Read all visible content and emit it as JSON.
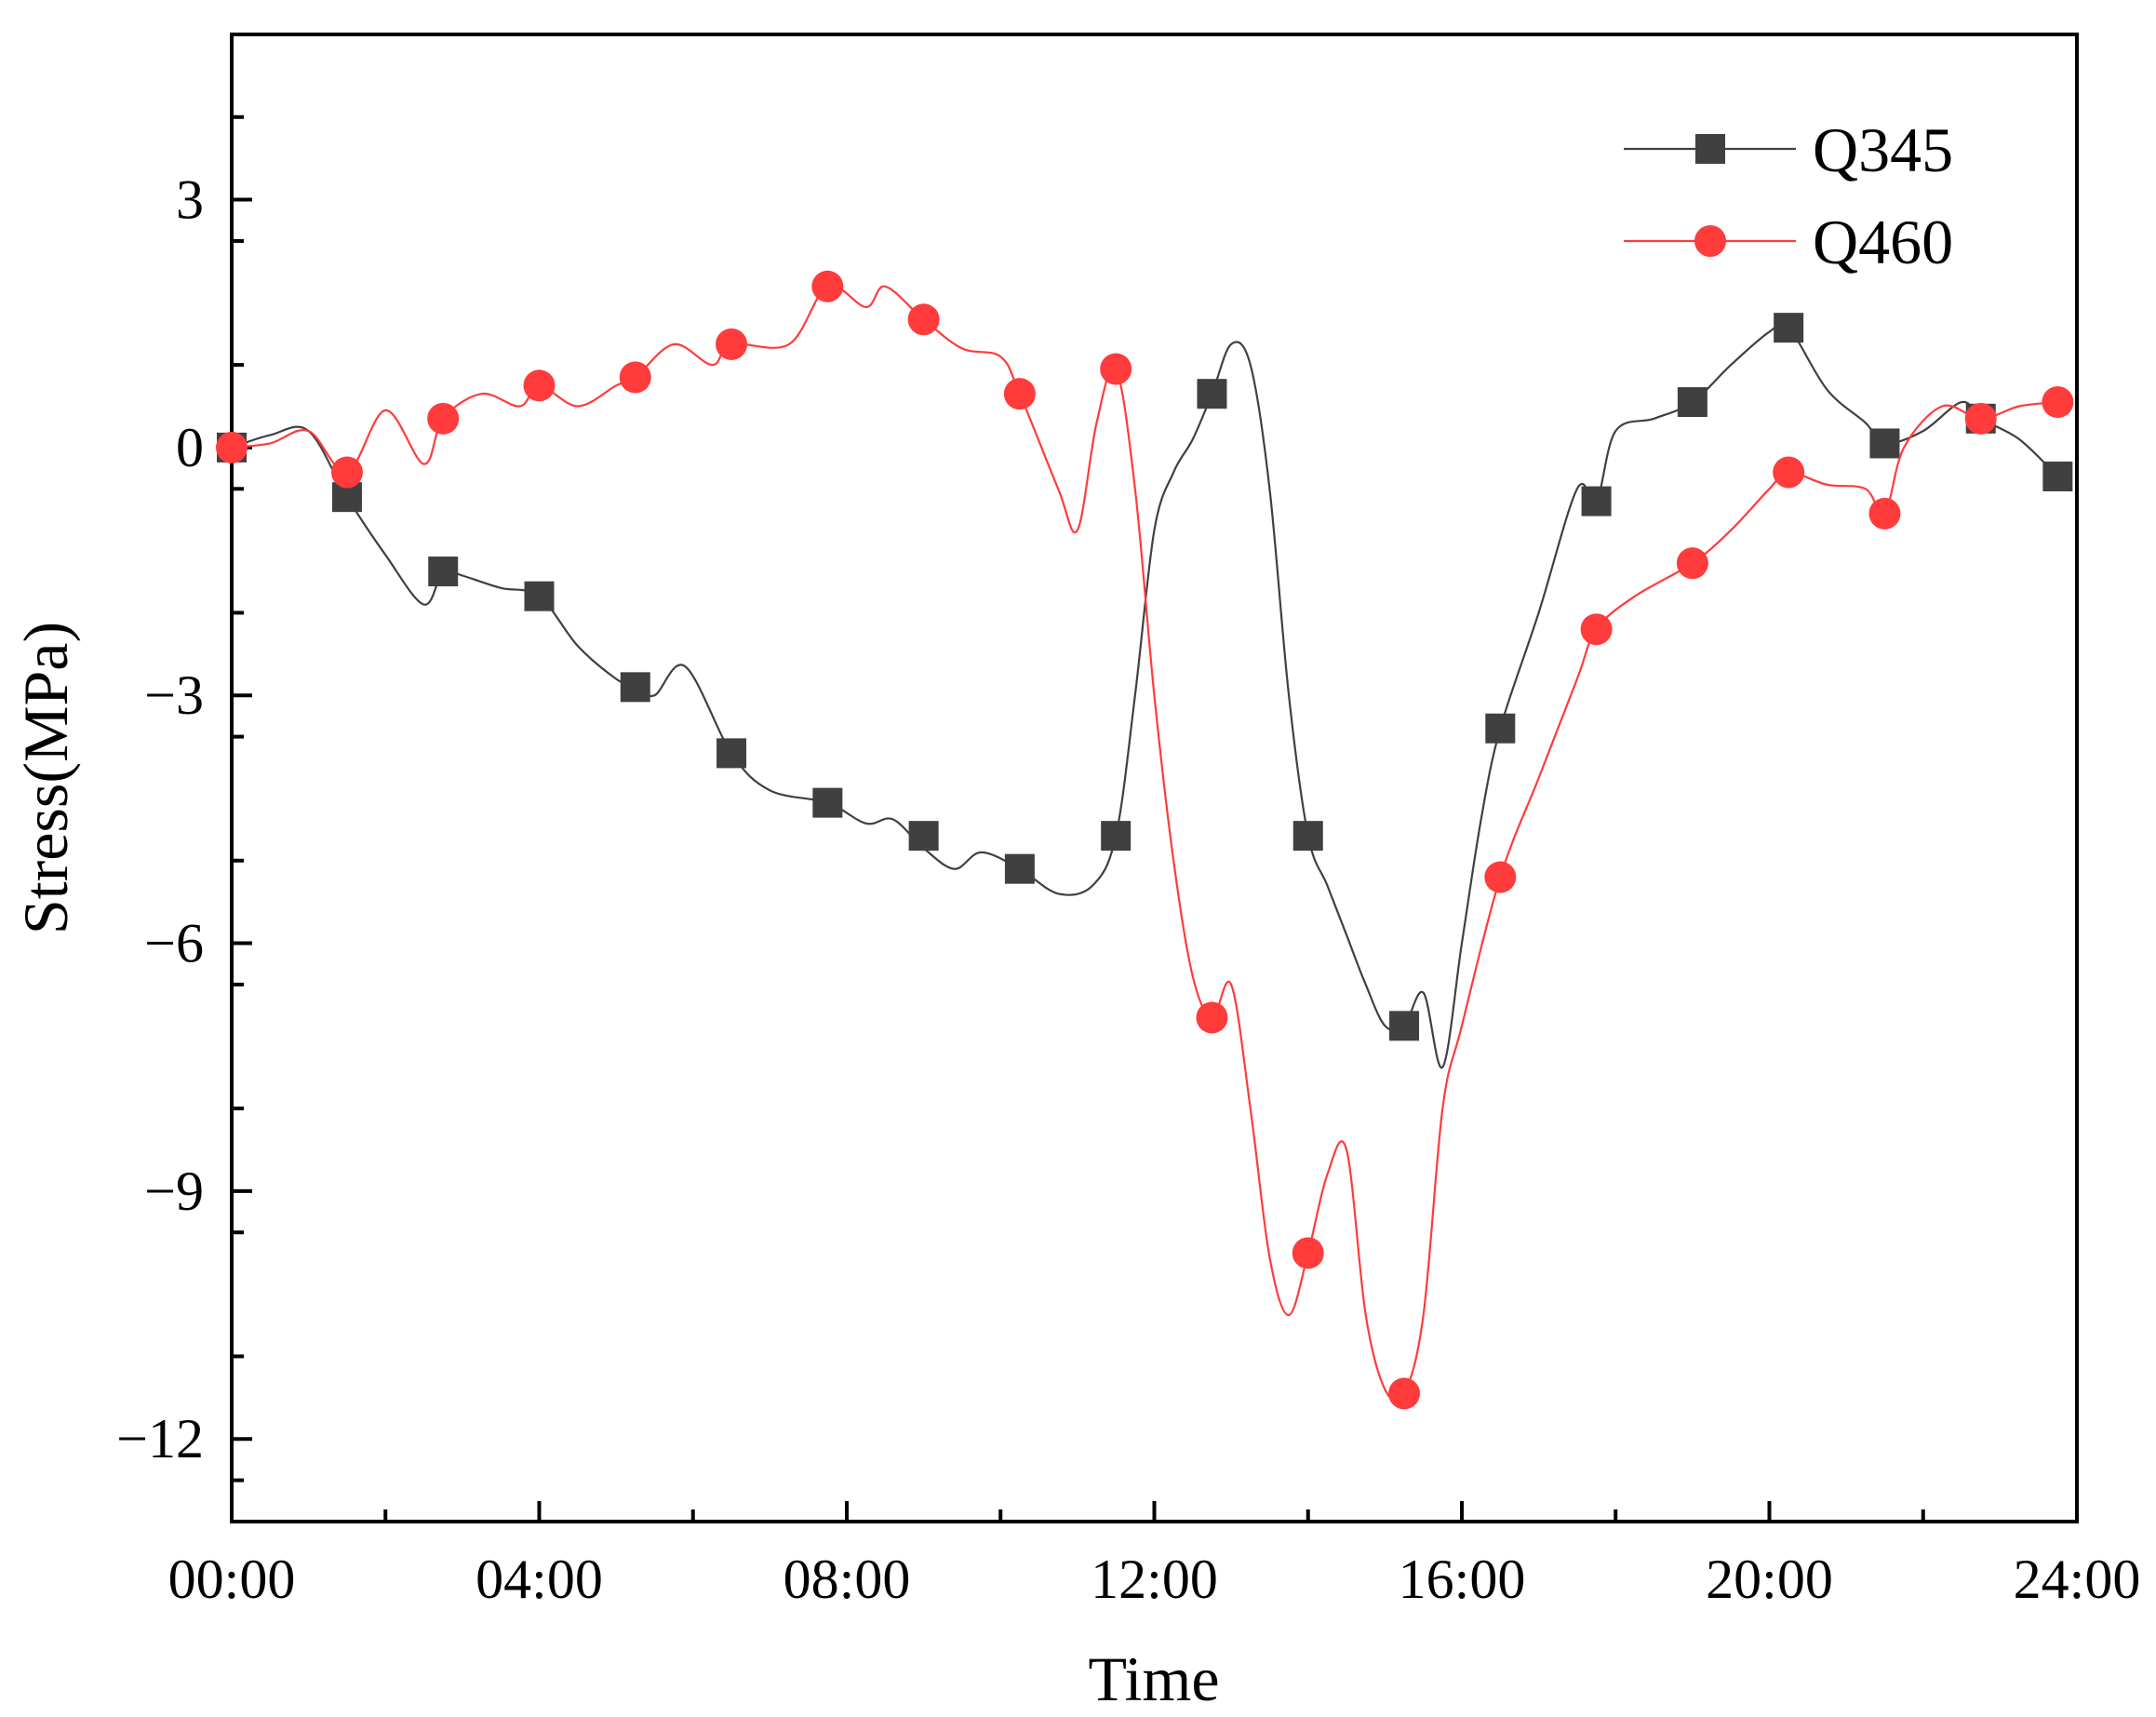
{
  "chart_data": {
    "type": "line",
    "title": "",
    "xlabel": "Time",
    "ylabel": "Stress(MPa)",
    "xlim": [
      0,
      24
    ],
    "ylim": [
      -13,
      5
    ],
    "x_ticks": [
      {
        "value": 0,
        "label": "00:00"
      },
      {
        "value": 4,
        "label": "04:00"
      },
      {
        "value": 8,
        "label": "08:00"
      },
      {
        "value": 12,
        "label": "12:00"
      },
      {
        "value": 16,
        "label": "16:00"
      },
      {
        "value": 20,
        "label": "20:00"
      },
      {
        "value": 24,
        "label": "24:00"
      }
    ],
    "y_ticks": [
      {
        "value": 3,
        "label": "3"
      },
      {
        "value": 0,
        "label": "0"
      },
      {
        "value": -3,
        "label": "−3"
      },
      {
        "value": -6,
        "label": "−6"
      },
      {
        "value": -9,
        "label": "−9"
      },
      {
        "value": -12,
        "label": "−12"
      }
    ],
    "legend_position": "top-right",
    "grid": false,
    "series": [
      {
        "name": "Q345",
        "color": "#404040",
        "marker": "square",
        "markers": {
          "x": [
            0,
            1.5,
            2.75,
            4,
            5.25,
            6.5,
            7.75,
            9,
            10.25,
            11.5,
            12.75,
            14,
            15.25,
            16.5,
            17.75,
            19,
            20.25,
            21.5,
            22.75,
            23.75
          ],
          "y": [
            0,
            -0.6,
            -1.5,
            -1.8,
            -2.9,
            -3.7,
            -4.3,
            -4.7,
            -5.1,
            -4.7,
            0.65,
            -4.7,
            -7.0,
            -3.4,
            -0.65,
            0.55,
            1.45,
            0.05,
            0.35,
            -0.35
          ]
        },
        "line": {
          "x": [
            0,
            0.5,
            1.0,
            1.5,
            2.0,
            2.5,
            2.75,
            3.0,
            3.5,
            4.0,
            4.5,
            5.0,
            5.25,
            5.5,
            5.9,
            6.5,
            7.0,
            7.75,
            8.25,
            8.6,
            9.0,
            9.4,
            9.75,
            10.25,
            10.75,
            11.2,
            11.5,
            11.75,
            12.0,
            12.25,
            12.5,
            12.75,
            13.0,
            13.25,
            13.5,
            13.75,
            14.0,
            14.25,
            14.5,
            14.75,
            15.0,
            15.25,
            15.5,
            15.75,
            16.0,
            16.25,
            16.5,
            17.0,
            17.5,
            17.75,
            18.0,
            18.5,
            19.0,
            19.5,
            20.0,
            20.25,
            20.75,
            21.25,
            21.5,
            22.0,
            22.5,
            22.75,
            23.25,
            23.75
          ],
          "y": [
            0,
            0.15,
            0.2,
            -0.6,
            -1.3,
            -1.9,
            -1.5,
            -1.55,
            -1.7,
            -1.8,
            -2.4,
            -2.8,
            -2.9,
            -3.0,
            -2.65,
            -3.7,
            -4.15,
            -4.3,
            -4.55,
            -4.5,
            -4.85,
            -5.1,
            -4.9,
            -5.1,
            -5.4,
            -5.3,
            -4.7,
            -3.0,
            -1.0,
            -0.3,
            0.1,
            0.65,
            1.25,
            1.0,
            -0.5,
            -3.0,
            -4.7,
            -5.3,
            -5.9,
            -6.5,
            -7.0,
            -7.0,
            -6.6,
            -7.5,
            -6.0,
            -4.5,
            -3.4,
            -2.0,
            -0.5,
            -0.65,
            0.2,
            0.35,
            0.55,
            1.0,
            1.4,
            1.45,
            0.7,
            0.3,
            0.05,
            0.2,
            0.55,
            0.35,
            0.1,
            -0.35
          ]
        }
      },
      {
        "name": "Q460",
        "color": "#ff3b3b",
        "marker": "circle",
        "markers": {
          "x": [
            0,
            1.5,
            2.75,
            4,
            5.25,
            6.5,
            7.75,
            9,
            10.25,
            11.5,
            12.75,
            14,
            15.25,
            16.5,
            17.75,
            19,
            20.25,
            21.5,
            22.75,
            23.75
          ],
          "y": [
            0,
            -0.3,
            0.35,
            0.75,
            0.85,
            1.25,
            1.95,
            1.55,
            0.65,
            0.95,
            -6.9,
            -9.75,
            -11.45,
            -5.2,
            -2.2,
            -1.4,
            -0.3,
            -0.8,
            0.35,
            0.55
          ]
        },
        "line": {
          "x": [
            0,
            0.5,
            1.0,
            1.5,
            2.0,
            2.5,
            2.75,
            3.25,
            3.75,
            4.0,
            4.5,
            5.0,
            5.25,
            5.75,
            6.25,
            6.5,
            7.25,
            7.75,
            8.25,
            8.5,
            9.0,
            9.5,
            10.0,
            10.25,
            10.75,
            11.0,
            11.25,
            11.5,
            11.75,
            12.0,
            12.25,
            12.5,
            12.75,
            13.0,
            13.25,
            13.5,
            13.75,
            14.0,
            14.25,
            14.5,
            14.75,
            15.0,
            15.25,
            15.5,
            15.75,
            16.0,
            16.5,
            17.0,
            17.5,
            17.75,
            18.25,
            19.0,
            19.5,
            20.0,
            20.25,
            20.75,
            21.25,
            21.5,
            21.75,
            22.25,
            22.75,
            23.25,
            23.75
          ],
          "y": [
            0,
            0.05,
            0.2,
            -0.3,
            0.45,
            -0.2,
            0.35,
            0.65,
            0.5,
            0.75,
            0.5,
            0.75,
            0.85,
            1.25,
            1.0,
            1.25,
            1.25,
            1.95,
            1.7,
            1.95,
            1.55,
            1.2,
            1.1,
            0.65,
            -0.5,
            -1.0,
            0.3,
            0.95,
            -0.5,
            -3.0,
            -5.0,
            -6.4,
            -6.9,
            -6.5,
            -8.0,
            -9.8,
            -10.5,
            -9.75,
            -8.8,
            -8.5,
            -10.5,
            -11.4,
            -11.45,
            -10.5,
            -8.0,
            -7.0,
            -5.2,
            -4.0,
            -2.8,
            -2.2,
            -1.8,
            -1.4,
            -1.0,
            -0.5,
            -0.3,
            -0.45,
            -0.5,
            -0.8,
            0.0,
            0.5,
            0.35,
            0.5,
            0.55
          ]
        }
      }
    ]
  }
}
